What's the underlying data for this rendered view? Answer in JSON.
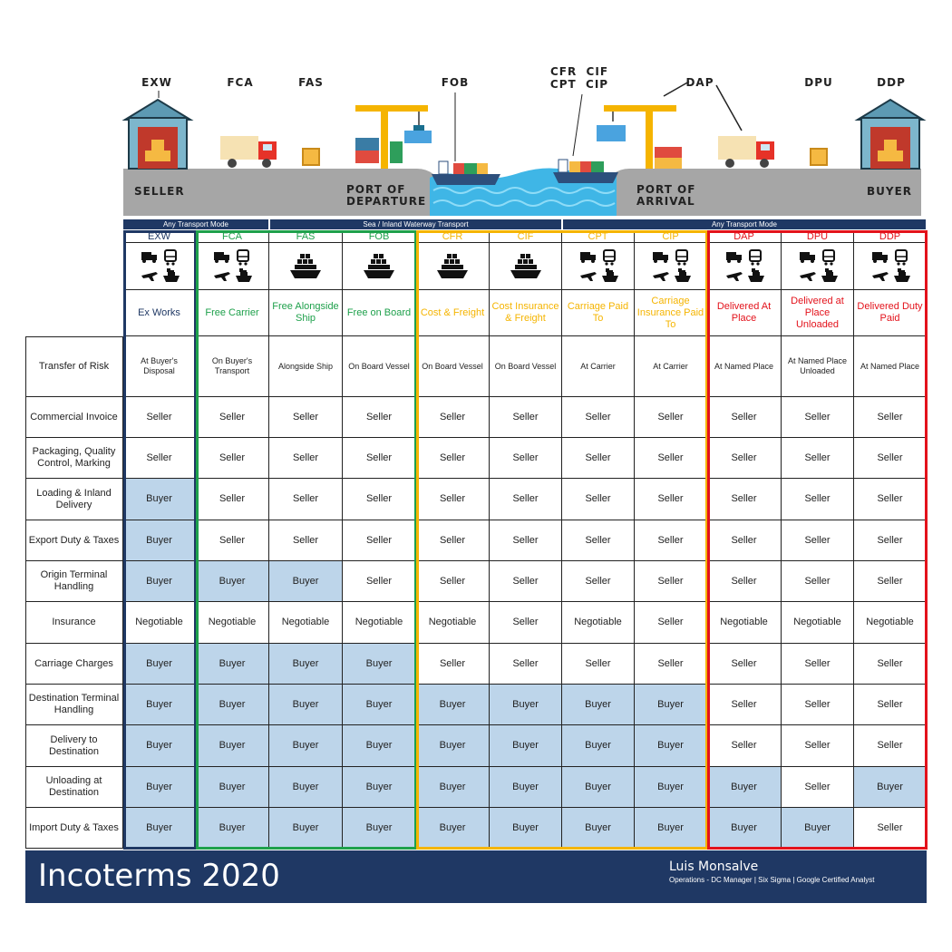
{
  "illustration": {
    "top_labels": [
      "EXW",
      "FCA",
      "FAS",
      "FOB",
      "CFR  CIF",
      "CPT  CIP",
      "DAP",
      "DPU",
      "DDP"
    ],
    "seller_label": "SELLER",
    "port_departure_label": [
      "PORT OF",
      "DEPARTURE"
    ],
    "port_arrival_label": [
      "PORT OF",
      "ARRIVAL"
    ],
    "buyer_label": "BUYER"
  },
  "transport_modes": [
    {
      "label": "Any Transport Mode"
    },
    {
      "label": "Sea / Inland Waterway Transport"
    },
    {
      "label": "Any Transport Mode"
    }
  ],
  "terms": [
    {
      "code": "EXW",
      "name": "Ex Works",
      "color": "#1f3864",
      "icons": "any"
    },
    {
      "code": "FCA",
      "name": "Free Carrier",
      "color": "#1ea04b",
      "icons": "any"
    },
    {
      "code": "FAS",
      "name": "Free Alongside Ship",
      "color": "#1ea04b",
      "icons": "sea"
    },
    {
      "code": "FOB",
      "name": "Free on Board",
      "color": "#1ea04b",
      "icons": "sea"
    },
    {
      "code": "CFR",
      "name": "Cost & Freight",
      "color": "#f5b400",
      "icons": "sea"
    },
    {
      "code": "CIF",
      "name": "Cost Insurance & Freight",
      "color": "#f5b400",
      "icons": "sea"
    },
    {
      "code": "CPT",
      "name": "Carriage Paid To",
      "color": "#f5b400",
      "icons": "any"
    },
    {
      "code": "CIP",
      "name": "Carriage Insurance Paid To",
      "color": "#f5b400",
      "icons": "any"
    },
    {
      "code": "DAP",
      "name": "Delivered At Place",
      "color": "#e3121b",
      "icons": "any"
    },
    {
      "code": "DPU",
      "name": "Delivered at Place Unloaded",
      "color": "#e3121b",
      "icons": "any"
    },
    {
      "code": "DDP",
      "name": "Delivered Duty Paid",
      "color": "#e3121b",
      "icons": "any"
    }
  ],
  "rows": [
    {
      "label": "Transfer of Risk",
      "values": [
        "At Buyer's Disposal",
        "On Buyer's Transport",
        "Alongside Ship",
        "On Board Vessel",
        "On Board Vessel",
        "On Board Vessel",
        "At Carrier",
        "At Carrier",
        "At Named Place",
        "At Named Place Unloaded",
        "At Named Place"
      ]
    },
    {
      "label": "Commercial Invoice",
      "values": [
        "Seller",
        "Seller",
        "Seller",
        "Seller",
        "Seller",
        "Seller",
        "Seller",
        "Seller",
        "Seller",
        "Seller",
        "Seller"
      ]
    },
    {
      "label": "Packaging, Quality Control, Marking",
      "values": [
        "Seller",
        "Seller",
        "Seller",
        "Seller",
        "Seller",
        "Seller",
        "Seller",
        "Seller",
        "Seller",
        "Seller",
        "Seller"
      ]
    },
    {
      "label": "Loading & Inland Delivery",
      "values": [
        "Buyer",
        "Seller",
        "Seller",
        "Seller",
        "Seller",
        "Seller",
        "Seller",
        "Seller",
        "Seller",
        "Seller",
        "Seller"
      ]
    },
    {
      "label": "Export Duty & Taxes",
      "values": [
        "Buyer",
        "Seller",
        "Seller",
        "Seller",
        "Seller",
        "Seller",
        "Seller",
        "Seller",
        "Seller",
        "Seller",
        "Seller"
      ]
    },
    {
      "label": "Origin Terminal Handling",
      "values": [
        "Buyer",
        "Buyer",
        "Buyer",
        "Seller",
        "Seller",
        "Seller",
        "Seller",
        "Seller",
        "Seller",
        "Seller",
        "Seller"
      ]
    },
    {
      "label": "Insurance",
      "values": [
        "Negotiable",
        "Negotiable",
        "Negotiable",
        "Negotiable",
        "Negotiable",
        "Seller",
        "Negotiable",
        "Seller",
        "Negotiable",
        "Negotiable",
        "Negotiable"
      ]
    },
    {
      "label": "Carriage Charges",
      "values": [
        "Buyer",
        "Buyer",
        "Buyer",
        "Buyer",
        "Seller",
        "Seller",
        "Seller",
        "Seller",
        "Seller",
        "Seller",
        "Seller"
      ]
    },
    {
      "label": "Destination Terminal Handling",
      "values": [
        "Buyer",
        "Buyer",
        "Buyer",
        "Buyer",
        "Buyer",
        "Buyer",
        "Buyer",
        "Buyer",
        "Seller",
        "Seller",
        "Seller"
      ]
    },
    {
      "label": "Delivery  to Destination",
      "values": [
        "Buyer",
        "Buyer",
        "Buyer",
        "Buyer",
        "Buyer",
        "Buyer",
        "Buyer",
        "Buyer",
        "Seller",
        "Seller",
        "Seller"
      ]
    },
    {
      "label": "Unloading  at Destination",
      "values": [
        "Buyer",
        "Buyer",
        "Buyer",
        "Buyer",
        "Buyer",
        "Buyer",
        "Buyer",
        "Buyer",
        "Buyer",
        "Seller",
        "Buyer"
      ]
    },
    {
      "label": "Import Duty & Taxes",
      "values": [
        "Buyer",
        "Buyer",
        "Buyer",
        "Buyer",
        "Buyer",
        "Buyer",
        "Buyer",
        "Buyer",
        "Buyer",
        "Buyer",
        "Seller"
      ]
    }
  ],
  "footer": {
    "title": "Incoterms 2020",
    "author": "Luis Monsalve",
    "subtitle": "Operations - DC Manager | Six Sigma | Google Certified Analyst"
  },
  "colors": {
    "navy": "#1f3864",
    "buyer_fill": "#bdd5ea",
    "green": "#1ea04b",
    "yellow": "#f5b400",
    "red": "#e3121b"
  }
}
